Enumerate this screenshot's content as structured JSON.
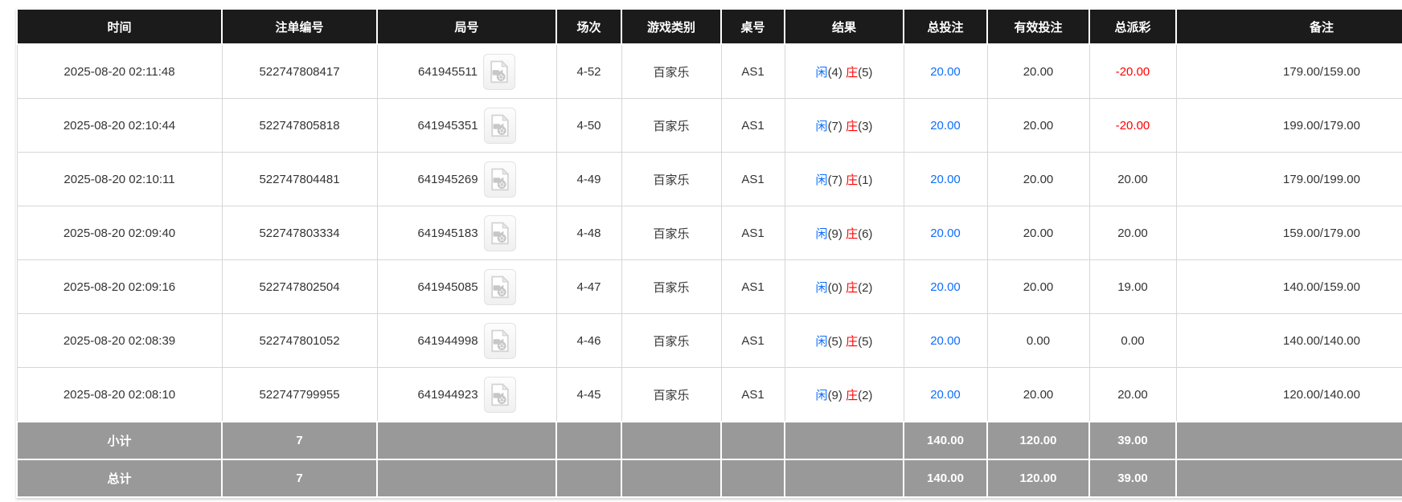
{
  "colors": {
    "header_bg": "#1b1b1b",
    "header_text": "#ffffff",
    "summary_bg": "#999999",
    "summary_text": "#ffffff",
    "accent_blue": "#0d6efd",
    "accent_red": "#ff0000",
    "body_text": "#333333",
    "border_light": "#d6d6d6"
  },
  "icons": {
    "round_video": "video-file-icon"
  },
  "table": {
    "columns": [
      {
        "key": "time",
        "label": "时间"
      },
      {
        "key": "bet_id",
        "label": "注单编号"
      },
      {
        "key": "round_id",
        "label": "局号"
      },
      {
        "key": "session",
        "label": "场次"
      },
      {
        "key": "game_type",
        "label": "游戏类别"
      },
      {
        "key": "table_no",
        "label": "桌号"
      },
      {
        "key": "result",
        "label": "结果"
      },
      {
        "key": "total_bet",
        "label": "总投注"
      },
      {
        "key": "valid_bet",
        "label": "有效投注"
      },
      {
        "key": "payout",
        "label": "总派彩"
      },
      {
        "key": "remark",
        "label": "备注"
      }
    ],
    "rows": [
      {
        "time": "2025-08-20 02:11:48",
        "bet_id": "522747808417",
        "round_id": "641945511",
        "session": "4-52",
        "game_type": "百家乐",
        "table_no": "AS1",
        "result": {
          "player_label": "闲",
          "player_score": "(4)",
          "banker_label": "庄",
          "banker_score": "(5)"
        },
        "total_bet": "20.00",
        "valid_bet": "20.00",
        "payout": "-20.00",
        "remark": "179.00/159.00"
      },
      {
        "time": "2025-08-20 02:10:44",
        "bet_id": "522747805818",
        "round_id": "641945351",
        "session": "4-50",
        "game_type": "百家乐",
        "table_no": "AS1",
        "result": {
          "player_label": "闲",
          "player_score": "(7)",
          "banker_label": "庄",
          "banker_score": "(3)"
        },
        "total_bet": "20.00",
        "valid_bet": "20.00",
        "payout": "-20.00",
        "remark": "199.00/179.00"
      },
      {
        "time": "2025-08-20 02:10:11",
        "bet_id": "522747804481",
        "round_id": "641945269",
        "session": "4-49",
        "game_type": "百家乐",
        "table_no": "AS1",
        "result": {
          "player_label": "闲",
          "player_score": "(7)",
          "banker_label": "庄",
          "banker_score": "(1)"
        },
        "total_bet": "20.00",
        "valid_bet": "20.00",
        "payout": "20.00",
        "remark": "179.00/199.00"
      },
      {
        "time": "2025-08-20 02:09:40",
        "bet_id": "522747803334",
        "round_id": "641945183",
        "session": "4-48",
        "game_type": "百家乐",
        "table_no": "AS1",
        "result": {
          "player_label": "闲",
          "player_score": "(9)",
          "banker_label": "庄",
          "banker_score": "(6)"
        },
        "total_bet": "20.00",
        "valid_bet": "20.00",
        "payout": "20.00",
        "remark": "159.00/179.00"
      },
      {
        "time": "2025-08-20 02:09:16",
        "bet_id": "522747802504",
        "round_id": "641945085",
        "session": "4-47",
        "game_type": "百家乐",
        "table_no": "AS1",
        "result": {
          "player_label": "闲",
          "player_score": "(0)",
          "banker_label": "庄",
          "banker_score": "(2)"
        },
        "total_bet": "20.00",
        "valid_bet": "20.00",
        "payout": "19.00",
        "remark": "140.00/159.00"
      },
      {
        "time": "2025-08-20 02:08:39",
        "bet_id": "522747801052",
        "round_id": "641944998",
        "session": "4-46",
        "game_type": "百家乐",
        "table_no": "AS1",
        "result": {
          "player_label": "闲",
          "player_score": "(5)",
          "banker_label": "庄",
          "banker_score": "(5)"
        },
        "total_bet": "20.00",
        "valid_bet": "0.00",
        "payout": "0.00",
        "remark": "140.00/140.00"
      },
      {
        "time": "2025-08-20 02:08:10",
        "bet_id": "522747799955",
        "round_id": "641944923",
        "session": "4-45",
        "game_type": "百家乐",
        "table_no": "AS1",
        "result": {
          "player_label": "闲",
          "player_score": "(9)",
          "banker_label": "庄",
          "banker_score": "(2)"
        },
        "total_bet": "20.00",
        "valid_bet": "20.00",
        "payout": "20.00",
        "remark": "120.00/140.00"
      }
    ],
    "summary_rows": [
      {
        "label": "小计",
        "count": "7",
        "total_bet": "140.00",
        "valid_bet": "120.00",
        "payout": "39.00"
      },
      {
        "label": "总计",
        "count": "7",
        "total_bet": "140.00",
        "valid_bet": "120.00",
        "payout": "39.00"
      }
    ]
  }
}
